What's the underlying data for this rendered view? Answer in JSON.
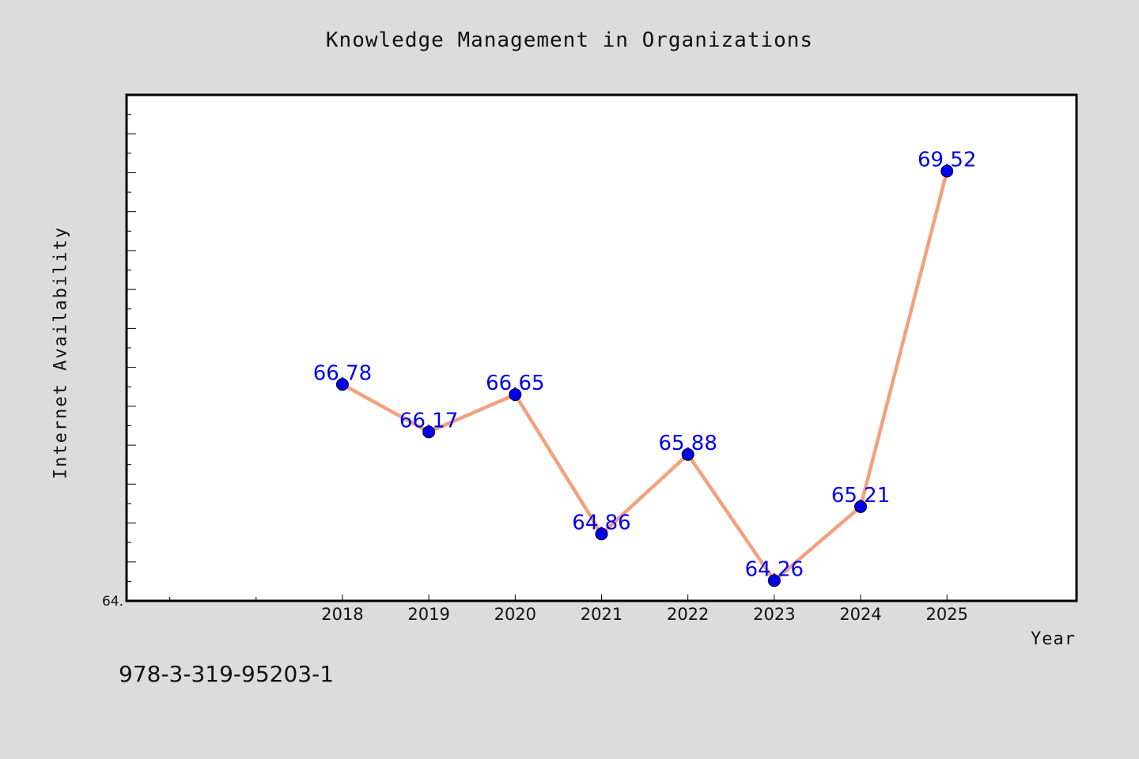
{
  "chart_data": {
    "type": "line",
    "title": "Knowledge Management in Organizations",
    "xlabel": "Year",
    "ylabel": "Internet Availability",
    "categories": [
      "2018",
      "2019",
      "2020",
      "2021",
      "2022",
      "2023",
      "2024",
      "2025"
    ],
    "series": [
      {
        "values": [
          66.78,
          66.17,
          66.65,
          64.86,
          65.88,
          64.26,
          65.21,
          69.52
        ],
        "line_color": "#f4a07e",
        "marker_color": "#0000ee"
      }
    ],
    "data_labels": [
      "66.78",
      "66.17",
      "66.65",
      "64.86",
      "65.88",
      "64.26",
      "65.21",
      "69.52"
    ],
    "ytick_labels": [
      "64."
    ],
    "ylim": [
      64.0,
      70.5
    ],
    "xlim": [
      2015.5,
      2026.5
    ],
    "grid": false,
    "data_label_color": "#0000ee"
  },
  "footer": {
    "id_text": "978-3-319-95203-1"
  }
}
